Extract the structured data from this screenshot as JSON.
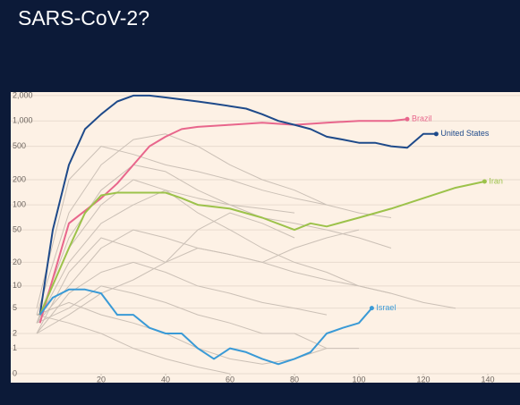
{
  "chart_data": {
    "type": "line",
    "title": "SARS-CoV-2?",
    "yscale": "log1p",
    "grid": true,
    "xlim": [
      0,
      150
    ],
    "ylim": [
      0,
      2200
    ],
    "xticks": [
      20,
      40,
      60,
      80,
      100,
      120,
      140
    ],
    "yticks": [
      {
        "value": 2000,
        "label": "2,000"
      },
      {
        "value": 1000,
        "label": "1,000"
      },
      500,
      200,
      100,
      50,
      20,
      10,
      5,
      2,
      1,
      0
    ],
    "series": [
      {
        "color": "#cbc0b6",
        "x": [
          0,
          10,
          20,
          30,
          40,
          50,
          60,
          70,
          80,
          90,
          100,
          110
        ],
        "values": [
          5,
          200,
          500,
          400,
          300,
          250,
          200,
          150,
          120,
          100,
          80,
          70
        ]
      },
      {
        "color": "#cbc0b6",
        "x": [
          0,
          10,
          20,
          30,
          40,
          50,
          60,
          70,
          80,
          90
        ],
        "values": [
          4,
          80,
          300,
          600,
          700,
          500,
          300,
          200,
          150,
          100
        ]
      },
      {
        "color": "#cbc0b6",
        "x": [
          0,
          10,
          20,
          30,
          40,
          50,
          60,
          70,
          80
        ],
        "values": [
          3,
          20,
          60,
          100,
          150,
          120,
          100,
          90,
          80
        ]
      },
      {
        "color": "#cbc0b6",
        "x": [
          0,
          10,
          20,
          30,
          40,
          50,
          60,
          70,
          80,
          90,
          100
        ],
        "values": [
          3,
          10,
          30,
          50,
          40,
          30,
          25,
          20,
          30,
          40,
          50
        ]
      },
      {
        "color": "#cbc0b6",
        "x": [
          0,
          10,
          20,
          30,
          40,
          50,
          60,
          70,
          80,
          90
        ],
        "values": [
          2,
          8,
          15,
          20,
          15,
          10,
          8,
          6,
          5,
          4
        ]
      },
      {
        "color": "#cbc0b6",
        "x": [
          0,
          10,
          20,
          30,
          40,
          50,
          60,
          70,
          80,
          90,
          100
        ],
        "values": [
          3,
          5,
          10,
          8,
          6,
          4,
          3,
          2,
          2,
          1,
          1
        ]
      },
      {
        "color": "#cbc0b6",
        "x": [
          0,
          10,
          20,
          30,
          40,
          50,
          60,
          70,
          80,
          90
        ],
        "values": [
          4,
          6,
          4,
          3,
          2,
          1,
          0.5,
          0.3,
          0.5,
          1
        ]
      },
      {
        "color": "#cbc0b6",
        "x": [
          0,
          10,
          20,
          30,
          40,
          50,
          60,
          70,
          80,
          90,
          100,
          110,
          120,
          130
        ],
        "values": [
          3,
          30,
          100,
          200,
          150,
          80,
          50,
          30,
          20,
          15,
          10,
          8,
          6,
          5
        ]
      },
      {
        "color": "#cbc0b6",
        "x": [
          0,
          10,
          20,
          30,
          40,
          50,
          60,
          70,
          80
        ],
        "values": [
          2,
          15,
          40,
          30,
          20,
          50,
          80,
          60,
          40
        ]
      },
      {
        "color": "#cbc0b6",
        "x": [
          0,
          10,
          20,
          30,
          40,
          50,
          60
        ],
        "values": [
          4,
          3,
          2,
          1,
          0.5,
          0.2,
          0
        ]
      },
      {
        "color": "#cbc0b6",
        "x": [
          0,
          10,
          20,
          30,
          40,
          50,
          60,
          70,
          80,
          90,
          100,
          110
        ],
        "values": [
          3,
          40,
          150,
          300,
          250,
          150,
          100,
          70,
          60,
          50,
          40,
          30
        ]
      },
      {
        "color": "#cbc0b6",
        "x": [
          0,
          10,
          20,
          30,
          40,
          50,
          60,
          70,
          80,
          90,
          100,
          110
        ],
        "values": [
          2,
          4,
          8,
          12,
          20,
          30,
          25,
          20,
          15,
          12,
          10,
          8
        ]
      },
      {
        "name": "Brazil",
        "color": "#e8668c",
        "x": [
          1,
          10,
          20,
          25,
          30,
          35,
          40,
          45,
          50,
          60,
          70,
          80,
          90,
          100,
          110,
          115
        ],
        "values": [
          3,
          60,
          120,
          180,
          300,
          500,
          650,
          800,
          850,
          900,
          950,
          900,
          950,
          1000,
          1000,
          1050
        ]
      },
      {
        "name": "United States",
        "color": "#1e4a8a",
        "x": [
          1,
          5,
          10,
          15,
          20,
          25,
          30,
          35,
          40,
          45,
          50,
          55,
          60,
          65,
          70,
          75,
          80,
          85,
          90,
          95,
          100,
          105,
          110,
          115,
          120,
          124
        ],
        "values": [
          4,
          50,
          300,
          800,
          1200,
          1700,
          2000,
          2000,
          1900,
          1800,
          1700,
          1600,
          1500,
          1400,
          1200,
          1000,
          900,
          800,
          650,
          600,
          550,
          550,
          500,
          480,
          700,
          700
        ]
      },
      {
        "name": "Iran",
        "color": "#9cc24a",
        "x": [
          1,
          10,
          15,
          20,
          25,
          30,
          40,
          45,
          50,
          60,
          70,
          80,
          85,
          90,
          100,
          110,
          120,
          130,
          139
        ],
        "values": [
          4,
          30,
          80,
          130,
          140,
          140,
          140,
          120,
          100,
          90,
          70,
          50,
          60,
          55,
          70,
          90,
          120,
          160,
          190
        ]
      },
      {
        "name": "Israel",
        "color": "#3a9ad6",
        "x": [
          1,
          5,
          10,
          15,
          20,
          25,
          30,
          35,
          40,
          45,
          50,
          55,
          60,
          65,
          70,
          75,
          80,
          85,
          90,
          95,
          100,
          104
        ],
        "values": [
          4,
          7,
          9,
          9,
          8,
          4,
          4,
          2.5,
          2,
          2,
          1,
          0.5,
          1,
          0.8,
          0.5,
          0.3,
          0.5,
          0.8,
          2,
          2.5,
          3,
          5
        ]
      }
    ]
  }
}
